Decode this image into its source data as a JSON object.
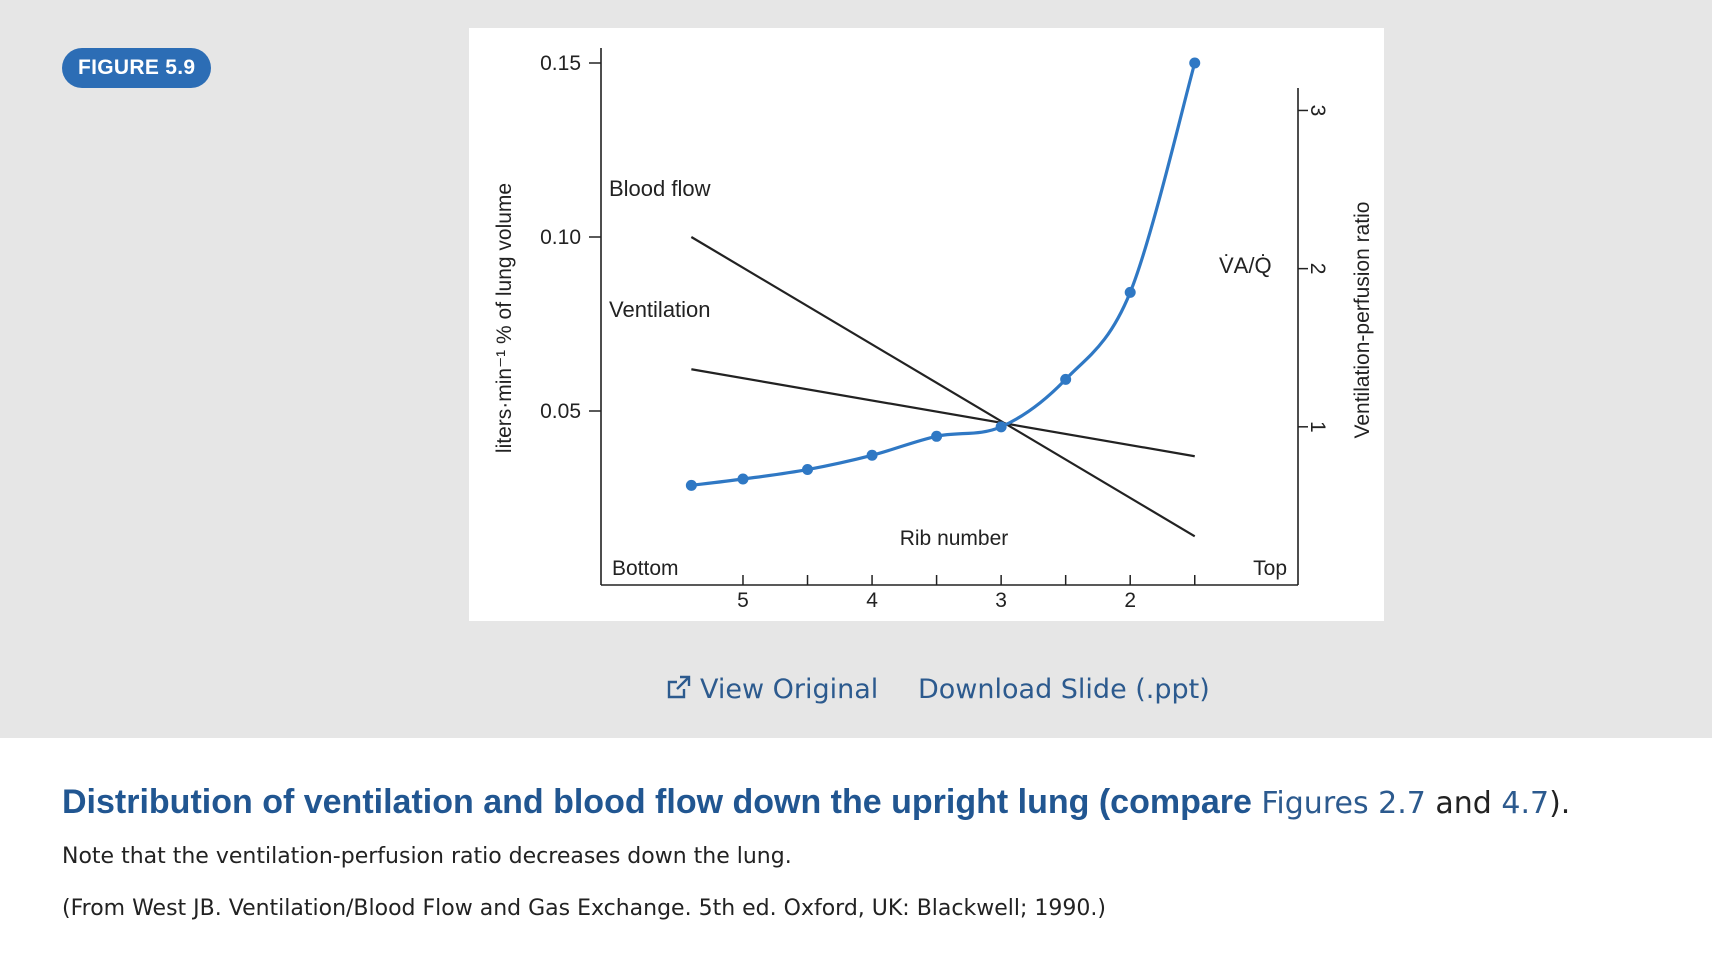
{
  "figure_badge": "FIGURE 5.9",
  "actions": {
    "view_original": "View Original",
    "download_slide": "Download Slide (.ppt)"
  },
  "caption": {
    "title_main": "Distribution of ventilation and blood flow down the upright lung (compare ",
    "fig_ref_1": "Figures 2.7",
    "and": " and ",
    "fig_ref_2": "4.7",
    "close": ").",
    "note": "Note that the ventilation-perfusion ratio decreases down the lung.",
    "source": "(From West JB. Ventilation/Blood Flow and Gas Exchange. 5th ed. Oxford, UK: Blackwell; 1990.)"
  },
  "colors": {
    "accent": "#2c6db5",
    "link": "#2c5a8e",
    "title": "#215691",
    "ratio_curve": "#2f78c4",
    "lines": "#222222"
  },
  "icons": {
    "view_original": "external-link-icon"
  },
  "chart_data": {
    "type": "line",
    "xlabel": "Rib number",
    "x_end_labels": {
      "left": "Bottom",
      "right": "Top"
    },
    "x_tick_labels": [
      {
        "x": 5,
        "label": "5"
      },
      {
        "x": 4,
        "label": "4"
      },
      {
        "x": 3,
        "label": "3"
      },
      {
        "x": 2,
        "label": "2"
      }
    ],
    "x_minor_ticks": [
      5,
      4.5,
      4,
      3.5,
      3,
      2.5,
      2,
      1.5
    ],
    "xlim": [
      6.1,
      0.7
    ],
    "ylabel_left": "liters·min⁻¹ % of lung volume",
    "ylim_left": [
      0,
      0.15
    ],
    "yticks_left": [
      {
        "v": 0.05,
        "label": "0.05"
      },
      {
        "v": 0.1,
        "label": "0.10"
      },
      {
        "v": 0.15,
        "label": "0.15"
      }
    ],
    "ylabel_right": "Ventilation-perfusion ratio",
    "ylim_right": [
      0,
      3.3
    ],
    "yticks_right": [
      {
        "v": 1,
        "label": "1"
      },
      {
        "v": 2,
        "label": "2"
      },
      {
        "v": 3,
        "label": "3"
      }
    ],
    "series": [
      {
        "name": "Blood flow",
        "axis": "left",
        "x": [
          5.4,
          1.5
        ],
        "y": [
          0.1,
          0.014
        ]
      },
      {
        "name": "Ventilation",
        "axis": "left",
        "x": [
          5.4,
          1.5
        ],
        "y": [
          0.062,
          0.037
        ]
      },
      {
        "name": "V̇A/Q̇",
        "axis": "right",
        "markers": true,
        "x": [
          5.4,
          5.0,
          4.5,
          4.0,
          3.5,
          3.0,
          2.5,
          2.0,
          1.5
        ],
        "y": [
          0.63,
          0.67,
          0.73,
          0.82,
          0.94,
          1.0,
          1.3,
          1.85,
          3.3
        ]
      }
    ]
  }
}
